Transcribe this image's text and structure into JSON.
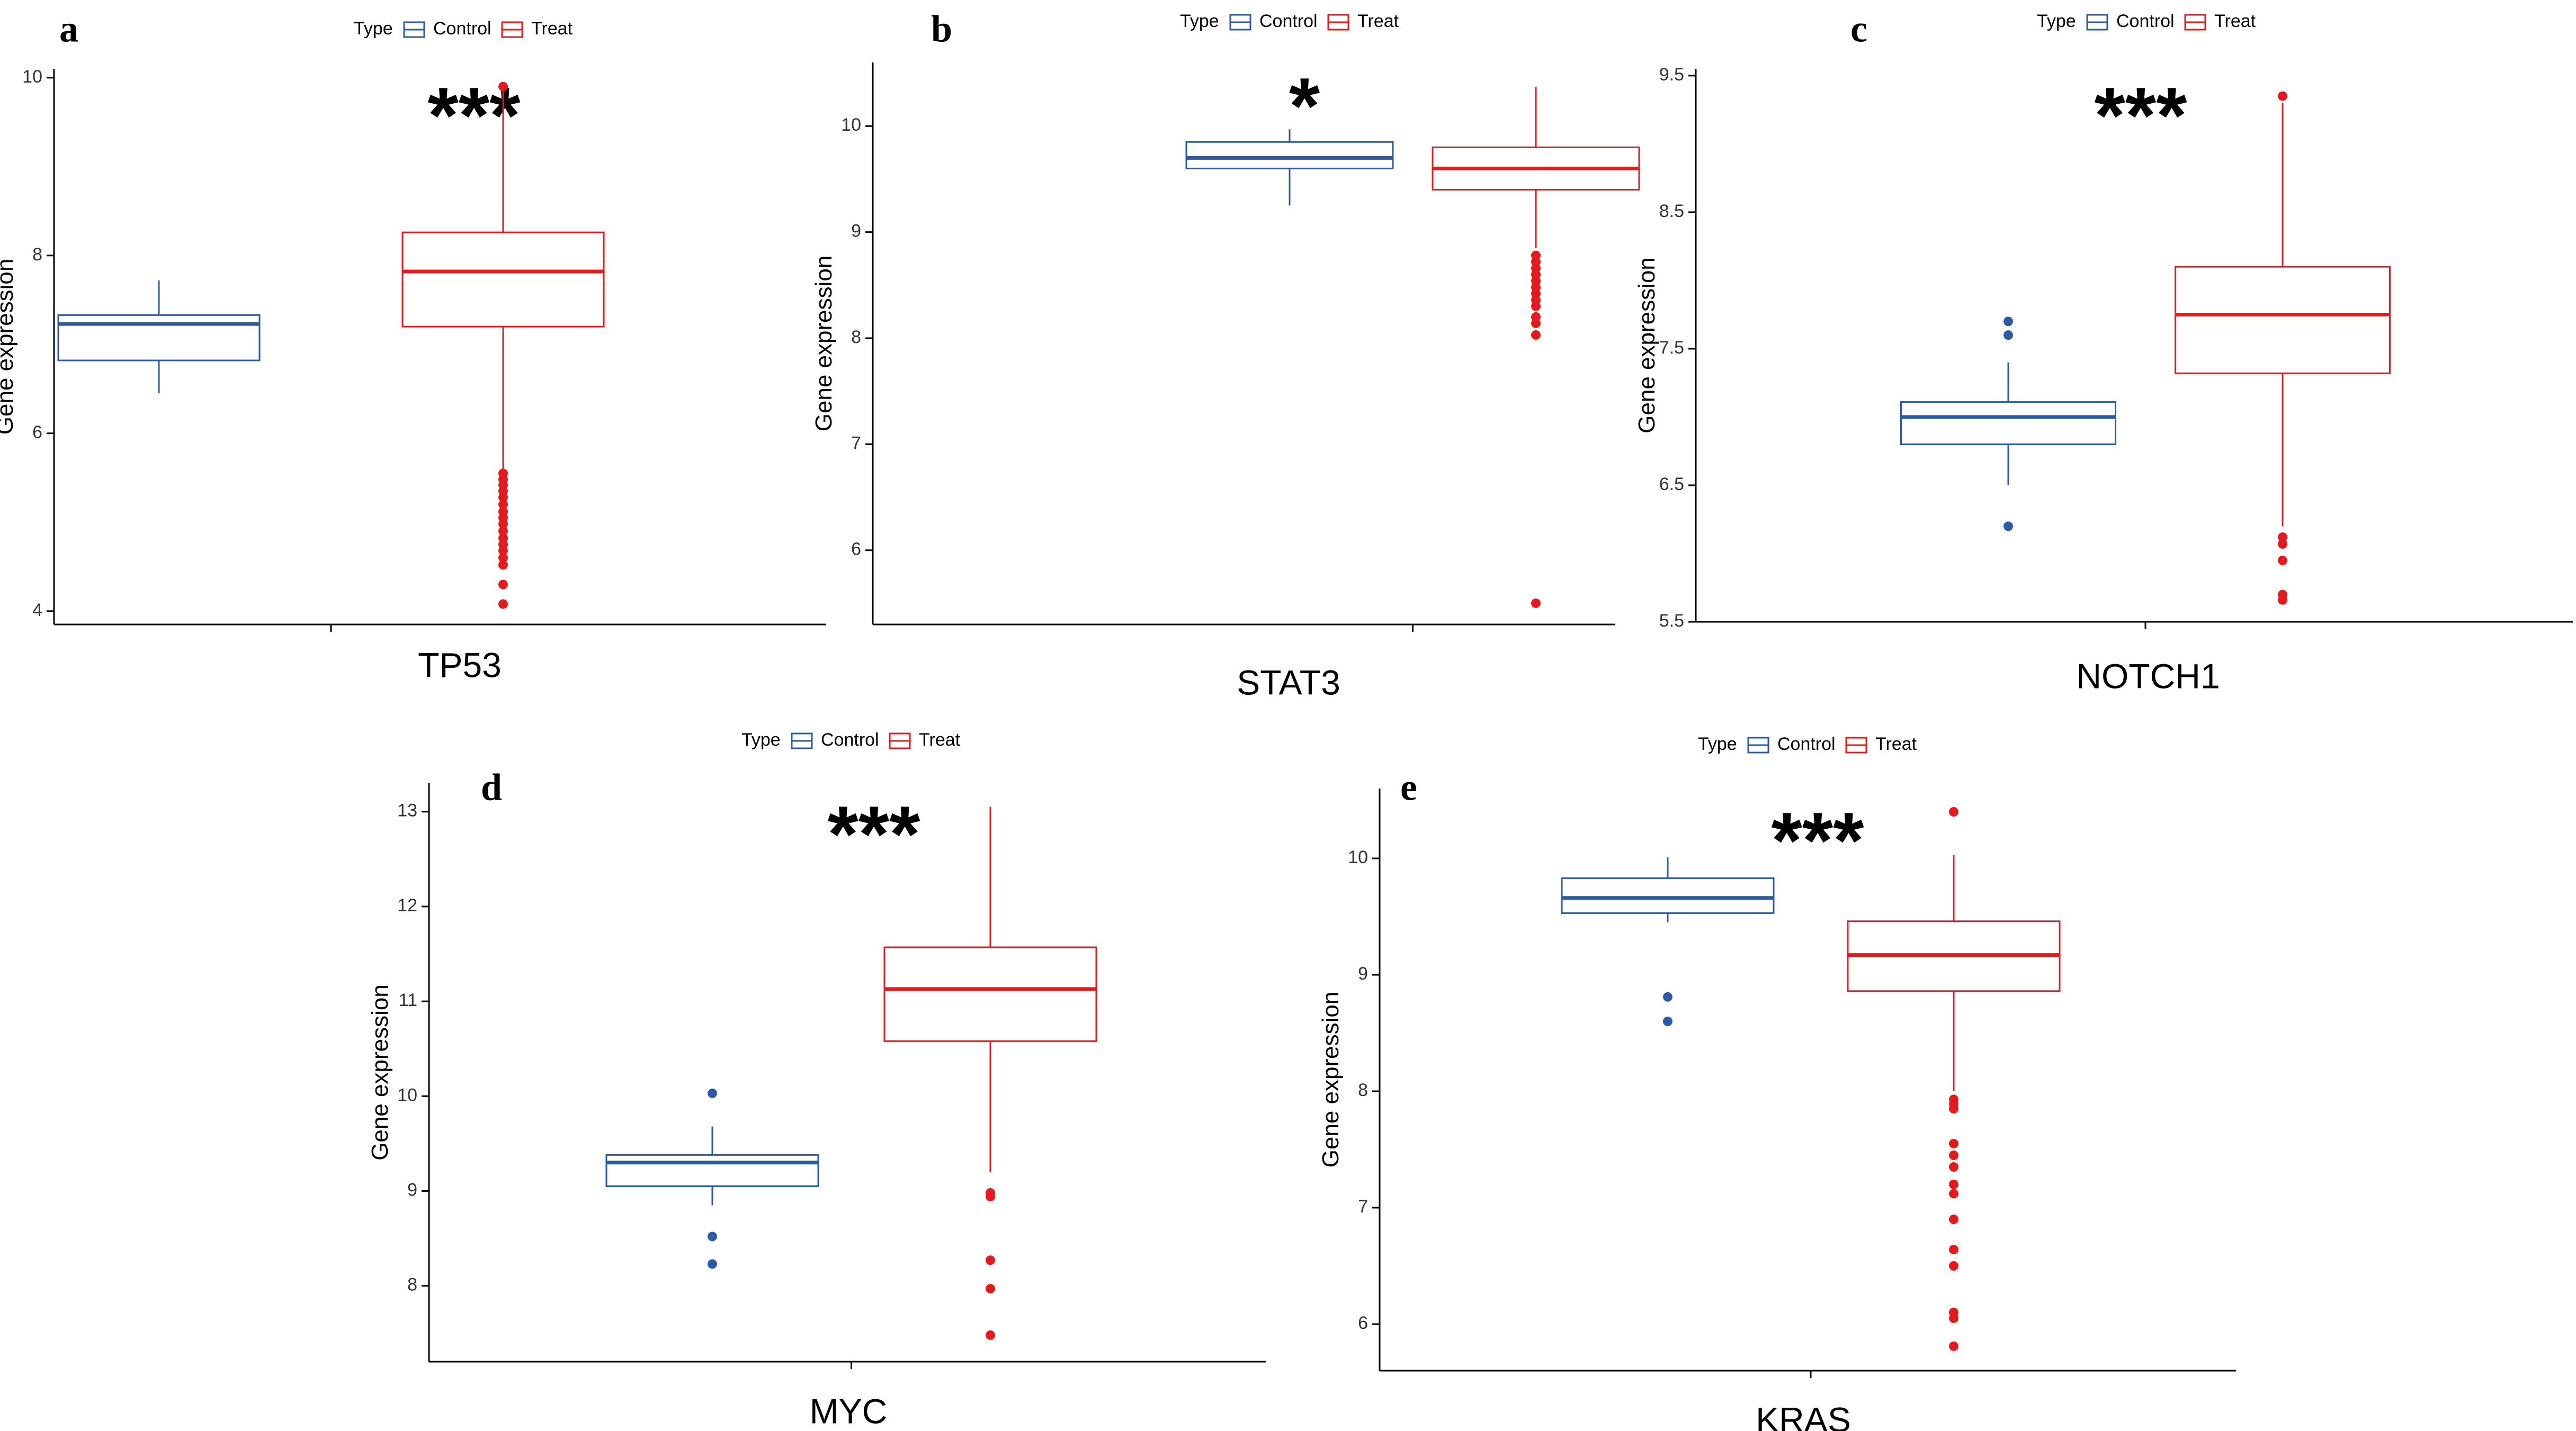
{
  "colors": {
    "control": "#2b5aa6",
    "treat": "#e41a1c",
    "axis": "#000000"
  },
  "legend": {
    "title": "Type",
    "control_label": "Control",
    "treat_label": "Treat"
  },
  "y_axis_label": "Gene expression",
  "chart_data": [
    {
      "type": "boxplot",
      "panel": "a",
      "gene": "TP53",
      "significance": "***",
      "ylim": [
        3.85,
        10.1
      ],
      "yticks": [
        4,
        6,
        8,
        10
      ],
      "groups": [
        {
          "name": "Control",
          "min": 6.45,
          "q1": 6.82,
          "median": 7.23,
          "q3": 7.33,
          "max": 7.72,
          "outliers": []
        },
        {
          "name": "Treat",
          "min": 5.6,
          "q1": 7.2,
          "median": 7.82,
          "q3": 8.26,
          "max": 9.85,
          "outliers": [
            9.9,
            5.55,
            5.48,
            5.42,
            5.35,
            5.28,
            5.2,
            5.12,
            5.05,
            4.98,
            4.9,
            4.82,
            4.75,
            4.68,
            4.6,
            4.52,
            4.3,
            4.08
          ]
        }
      ]
    },
    {
      "type": "boxplot",
      "panel": "b",
      "gene": "STAT3",
      "significance": "*",
      "ylim": [
        5.3,
        10.6
      ],
      "yticks": [
        6,
        7,
        8,
        9,
        10
      ],
      "groups": [
        {
          "name": "Control",
          "min": 9.25,
          "q1": 9.6,
          "median": 9.7,
          "q3": 9.85,
          "max": 9.97,
          "outliers": []
        },
        {
          "name": "Treat",
          "min": 8.85,
          "q1": 9.4,
          "median": 9.6,
          "q3": 9.8,
          "max": 10.37,
          "outliers": [
            8.78,
            8.72,
            8.66,
            8.6,
            8.54,
            8.48,
            8.42,
            8.36,
            8.3,
            8.2,
            8.14,
            8.03,
            5.5
          ]
        }
      ]
    },
    {
      "type": "boxplot",
      "panel": "c",
      "gene": "NOTCH1",
      "significance": "***",
      "ylim": [
        5.5,
        9.55
      ],
      "yticks": [
        5.5,
        6.5,
        7.5,
        8.5,
        9.5
      ],
      "yticklabels": [
        "5.5",
        "6.5",
        "7.5",
        "8.5",
        "9.5"
      ],
      "groups": [
        {
          "name": "Control",
          "min": 6.5,
          "q1": 6.8,
          "median": 7.0,
          "q3": 7.11,
          "max": 7.4,
          "outliers": [
            7.7,
            7.6,
            6.2
          ]
        },
        {
          "name": "Treat",
          "min": 6.2,
          "q1": 7.32,
          "median": 7.75,
          "q3": 8.1,
          "max": 9.3,
          "outliers": [
            9.35,
            6.12,
            6.07,
            5.95,
            5.7,
            5.66
          ]
        }
      ]
    },
    {
      "type": "boxplot",
      "panel": "d",
      "gene": "MYC",
      "significance": "***",
      "ylim": [
        7.2,
        13.3
      ],
      "yticks": [
        8,
        9,
        10,
        11,
        12,
        13
      ],
      "groups": [
        {
          "name": "Control",
          "min": 8.85,
          "q1": 9.05,
          "median": 9.3,
          "q3": 9.38,
          "max": 9.68,
          "outliers": [
            10.03,
            8.52,
            8.23
          ]
        },
        {
          "name": "Treat",
          "min": 9.2,
          "q1": 10.58,
          "median": 11.13,
          "q3": 11.57,
          "max": 13.05,
          "outliers": [
            8.98,
            8.94,
            8.27,
            7.97,
            7.48
          ]
        }
      ]
    },
    {
      "type": "boxplot",
      "panel": "e",
      "gene": "KRAS",
      "significance": "***",
      "ylim": [
        5.6,
        10.6
      ],
      "yticks": [
        6,
        7,
        8,
        9,
        10
      ],
      "groups": [
        {
          "name": "Control",
          "min": 9.45,
          "q1": 9.53,
          "median": 9.66,
          "q3": 9.83,
          "max": 10.01,
          "outliers": [
            8.81,
            8.6
          ]
        },
        {
          "name": "Treat",
          "min": 8.0,
          "q1": 8.86,
          "median": 9.17,
          "q3": 9.46,
          "max": 10.03,
          "outliers": [
            10.4,
            7.93,
            7.89,
            7.85,
            7.55,
            7.45,
            7.35,
            7.2,
            7.12,
            6.9,
            6.64,
            6.5,
            6.1,
            6.05,
            5.81
          ]
        }
      ]
    }
  ]
}
